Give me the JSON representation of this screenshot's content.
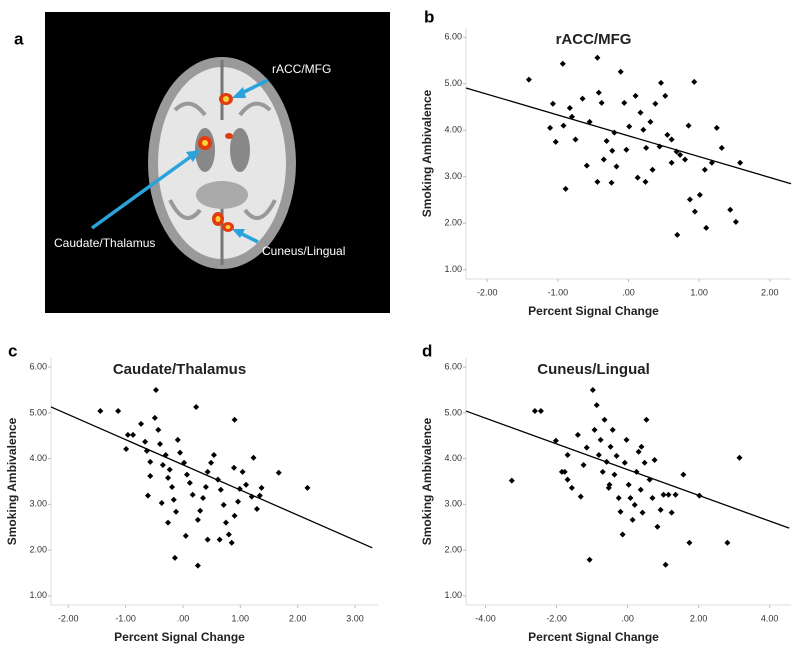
{
  "figure": {
    "panel_labels": [
      "a",
      "b",
      "c",
      "d"
    ],
    "image_labels": [
      "rACC/MFG",
      "Caudate/Thalamus",
      "Cuneus/Lingual"
    ]
  },
  "chart_data": [
    {
      "type": "scatter",
      "title": "rACC/MFG",
      "x_label": "Percent Signal Change",
      "y_label": "Smoking Ambivalence",
      "color": "#000000",
      "xlim": [
        -2.3,
        2.3
      ],
      "ylim": [
        0.8,
        6.2
      ],
      "xticks": [
        {
          "value": -2,
          "label": "-2.00"
        },
        {
          "value": -1,
          "label": "-1.00"
        },
        {
          "value": 0,
          "label": ".00"
        },
        {
          "value": 1,
          "label": "1.00"
        },
        {
          "value": 2,
          "label": "2.00"
        }
      ],
      "yticks": [
        {
          "value": 1,
          "label": "1.00"
        },
        {
          "value": 2,
          "label": "2.00"
        },
        {
          "value": 3,
          "label": "3.00"
        },
        {
          "value": 4,
          "label": "4.00"
        },
        {
          "value": 5,
          "label": "5.00"
        },
        {
          "value": 6,
          "label": "6.00"
        }
      ],
      "x": [
        -1.41,
        -0.93,
        -0.83,
        -1.07,
        -0.92,
        -0.8,
        -0.65,
        -0.55,
        -0.44,
        -0.42,
        -0.38,
        -0.31,
        -0.23,
        -0.2,
        -0.11,
        -0.06,
        0.01,
        0.1,
        0.17,
        0.21,
        0.25,
        0.31,
        0.38,
        0.46,
        0.52,
        0.55,
        0.61,
        0.68,
        0.73,
        0.8,
        0.87,
        0.94,
        1.01,
        1.08,
        1.18,
        1.25,
        1.32,
        1.44,
        1.52,
        1.58,
        0.93,
        0.85,
        0.61,
        0.44,
        0.34,
        0.24,
        0.13,
        -0.03,
        -0.17,
        -0.24,
        -0.35,
        -0.44,
        -0.59,
        -0.75,
        -0.89,
        -1.03,
        -1.11,
        0.69,
        1.1
      ],
      "y": [
        5.09,
        5.43,
        4.48,
        4.57,
        4.1,
        4.29,
        4.68,
        4.18,
        5.56,
        4.81,
        4.59,
        3.77,
        3.56,
        3.95,
        5.26,
        4.59,
        4.08,
        4.74,
        4.38,
        4.01,
        3.62,
        4.18,
        4.57,
        5.02,
        4.74,
        3.9,
        3.8,
        3.54,
        3.47,
        3.37,
        2.51,
        2.25,
        2.61,
        3.15,
        3.3,
        4.05,
        3.62,
        2.29,
        2.03,
        3.3,
        5.04,
        4.1,
        3.3,
        3.65,
        3.15,
        2.89,
        2.98,
        3.58,
        3.22,
        2.87,
        3.37,
        2.89,
        3.24,
        3.8,
        2.74,
        3.75,
        4.05,
        1.75,
        1.9
      ],
      "trend_line": {
        "x": [
          -2.3,
          2.3
        ],
        "y": [
          4.91,
          2.85
        ]
      }
    },
    {
      "type": "scatter",
      "title": "Caudate/Thalamus",
      "x_label": "Percent Signal Change",
      "y_label": "Smoking Ambivalence",
      "color": "#000000",
      "xlim": [
        -2.3,
        3.4
      ],
      "ylim": [
        0.8,
        6.2
      ],
      "xticks": [
        {
          "value": -2,
          "label": "-2.00"
        },
        {
          "value": -1,
          "label": "-1.00"
        },
        {
          "value": 0,
          "label": ".00"
        },
        {
          "value": 1,
          "label": "1.00"
        },
        {
          "value": 2,
          "label": "2.00"
        },
        {
          "value": 3,
          "label": "3.00"
        }
      ],
      "yticks": [
        {
          "value": 1,
          "label": "1.00"
        },
        {
          "value": 2,
          "label": "2.00"
        },
        {
          "value": 3,
          "label": "3.00"
        },
        {
          "value": 4,
          "label": "4.00"
        },
        {
          "value": 5,
          "label": "5.00"
        },
        {
          "value": 6,
          "label": "6.00"
        }
      ],
      "x": [
        -1.44,
        -1.13,
        -0.96,
        -0.87,
        -0.99,
        -0.73,
        -0.66,
        -0.63,
        -0.57,
        -0.49,
        -0.47,
        -0.43,
        -0.4,
        -0.35,
        -0.3,
        -0.26,
        -0.23,
        -0.19,
        -0.16,
        -0.12,
        -0.09,
        -0.05,
        0.02,
        0.07,
        0.12,
        0.17,
        0.23,
        0.26,
        0.3,
        0.35,
        0.4,
        0.43,
        0.49,
        0.54,
        0.61,
        0.66,
        0.71,
        0.75,
        0.8,
        0.85,
        0.9,
        0.96,
        0.99,
        1.04,
        1.1,
        0.9,
        1.2,
        1.29,
        1.37,
        0.89,
        1.23,
        -0.14,
        0.26,
        0.64,
        1.67,
        2.17,
        1.34,
        -0.61,
        -0.57,
        -0.37,
        -0.26,
        0.05,
        0.43
      ],
      "y": [
        5.04,
        5.04,
        4.52,
        4.52,
        4.21,
        4.76,
        4.37,
        4.17,
        3.93,
        4.89,
        5.5,
        4.63,
        4.32,
        3.86,
        4.08,
        3.58,
        3.76,
        3.38,
        3.1,
        2.84,
        4.41,
        4.13,
        3.91,
        3.65,
        3.47,
        3.21,
        5.13,
        2.66,
        2.86,
        3.14,
        3.38,
        3.71,
        3.91,
        4.08,
        3.54,
        3.32,
        2.99,
        2.6,
        2.34,
        2.16,
        2.75,
        3.06,
        3.34,
        3.71,
        3.43,
        4.85,
        3.17,
        2.9,
        3.36,
        3.8,
        4.02,
        1.83,
        1.66,
        2.23,
        3.69,
        3.36,
        3.19,
        3.19,
        3.62,
        3.03,
        2.6,
        2.31,
        2.23
      ],
      "trend_line": {
        "x": [
          -2.3,
          3.3
        ],
        "y": [
          5.13,
          2.05
        ]
      }
    },
    {
      "type": "scatter",
      "title": "Cuneus/Lingual",
      "x_label": "Percent Signal Change",
      "y_label": "Smoking Ambivalence",
      "color": "#000000",
      "xlim": [
        -4.55,
        4.6
      ],
      "ylim": [
        0.8,
        6.2
      ],
      "xticks": [
        {
          "value": -4,
          "label": "-4.00"
        },
        {
          "value": -2,
          "label": "-2.00"
        },
        {
          "value": 0,
          "label": ".00"
        },
        {
          "value": 2,
          "label": "2.00"
        },
        {
          "value": 4,
          "label": "4.00"
        }
      ],
      "yticks": [
        {
          "value": 1,
          "label": "1.00"
        },
        {
          "value": 2,
          "label": "2.00"
        },
        {
          "value": 3,
          "label": "3.00"
        },
        {
          "value": 4,
          "label": "4.00"
        },
        {
          "value": 5,
          "label": "5.00"
        },
        {
          "value": 6,
          "label": "6.00"
        }
      ],
      "x": [
        -3.26,
        -2.61,
        -2.44,
        -2.02,
        -1.85,
        -1.77,
        -1.69,
        -1.57,
        -1.4,
        -1.32,
        -1.24,
        -1.15,
        -1.07,
        -0.98,
        -0.93,
        -0.87,
        -0.81,
        -0.76,
        -0.7,
        -0.65,
        -0.59,
        -0.53,
        -0.48,
        -0.42,
        -0.37,
        -0.31,
        -0.25,
        -0.2,
        -0.14,
        -0.08,
        -0.03,
        0.03,
        0.08,
        0.14,
        0.2,
        0.25,
        0.31,
        0.37,
        0.42,
        0.48,
        0.53,
        0.62,
        0.7,
        0.76,
        0.84,
        0.93,
        1.01,
        1.07,
        1.15,
        1.24,
        1.35,
        1.57,
        2.02,
        1.74,
        2.81,
        3.15,
        -1.69,
        -0.51,
        0.39
      ],
      "y": [
        3.52,
        5.04,
        5.04,
        4.39,
        3.71,
        3.71,
        3.54,
        3.36,
        4.52,
        3.17,
        3.86,
        4.24,
        1.79,
        5.5,
        4.63,
        5.17,
        4.08,
        4.41,
        3.71,
        4.85,
        3.93,
        3.36,
        4.26,
        4.63,
        3.65,
        4.06,
        3.14,
        2.84,
        2.34,
        3.91,
        4.41,
        3.43,
        3.14,
        2.66,
        2.99,
        3.71,
        4.15,
        3.32,
        2.82,
        3.91,
        4.85,
        3.54,
        3.14,
        3.97,
        2.51,
        2.88,
        3.21,
        1.68,
        3.21,
        2.82,
        3.21,
        3.65,
        3.19,
        2.16,
        2.16,
        4.02,
        4.08,
        3.43,
        4.26
      ],
      "trend_line": {
        "x": [
          -4.55,
          4.55
        ],
        "y": [
          5.04,
          2.48
        ]
      }
    }
  ]
}
